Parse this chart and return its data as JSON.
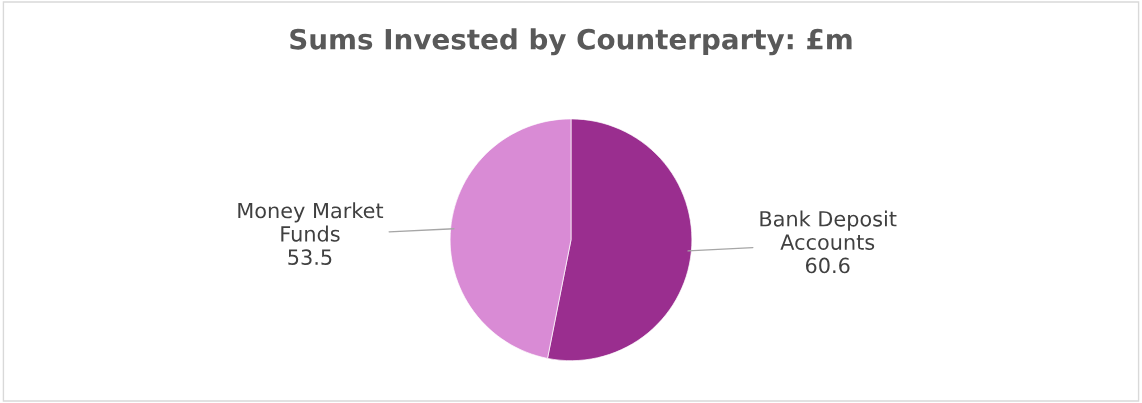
{
  "chart_data": {
    "type": "pie",
    "title": "Sums Invested by Counterparty: £m",
    "categories": [
      "Bank Deposit\nAccounts",
      "Money Market\nFunds"
    ],
    "values": [
      60.6,
      53.5
    ],
    "colors": [
      "#9a2e8f",
      "#d98bd5"
    ],
    "data_labels": true,
    "legend": false
  }
}
